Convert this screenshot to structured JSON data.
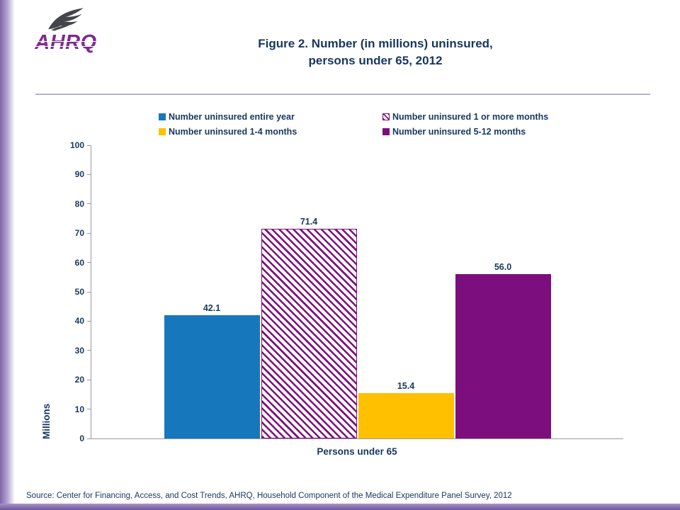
{
  "header": {
    "title_line1": "Figure 2. Number (in millions) uninsured,",
    "title_line2": "persons under 65, 2012"
  },
  "logo": {
    "text": "AHRQ"
  },
  "chart_data": {
    "type": "bar",
    "title": "Figure 2. Number (in millions) uninsured, persons under 65, 2012",
    "categories": [
      "Persons under 65"
    ],
    "xlabel": "Persons under 65",
    "ylabel": "Millions",
    "ylim": [
      0,
      100
    ],
    "yticks": [
      0,
      10,
      20,
      30,
      40,
      50,
      60,
      70,
      80,
      90,
      100
    ],
    "grid": false,
    "legend_position": "top",
    "series": [
      {
        "name": "Number uninsured entire year",
        "values": [
          42.1
        ],
        "display": "42.1",
        "color": "#1777BC",
        "pattern": "solid"
      },
      {
        "name": "Number uninsured 1 or more months",
        "values": [
          71.4
        ],
        "display": "71.4",
        "color": "#7D0E7E",
        "pattern": "hatched"
      },
      {
        "name": "Number uninsured 1-4 months",
        "values": [
          15.4
        ],
        "display": "15.4",
        "color": "#FFC000",
        "pattern": "solid"
      },
      {
        "name": "Number uninsured 5-12 months",
        "values": [
          56.0
        ],
        "display": "56.0",
        "color": "#7D0E7E",
        "pattern": "solid"
      }
    ]
  },
  "footer": {
    "source": "Source: Center for Financing, Access, and Cost Trends, AHRQ, Household Component of the Medical Expenditure Panel Survey, 2012"
  },
  "theme": {
    "text_navy": "#17375E",
    "logo_purple": "#812990",
    "strip_purple": "#7F66A8",
    "axis_gray": "#9A9AA6"
  }
}
